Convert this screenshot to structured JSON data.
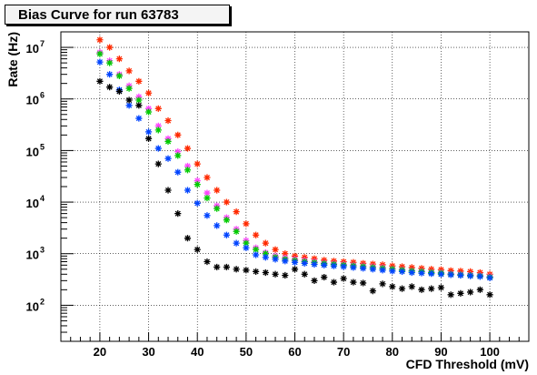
{
  "chart_data": {
    "type": "scatter",
    "title": "Bias Curve for run 63783",
    "xlabel": "CFD Threshold (mV)",
    "ylabel": "Rate (Hz)",
    "xlim": [
      12,
      108
    ],
    "ylim": [
      20,
      20000000
    ],
    "ylog": true,
    "grid": true,
    "x_ticks": [
      20,
      30,
      40,
      50,
      60,
      70,
      80,
      90,
      100
    ],
    "y_ticks": [
      {
        "value": 100,
        "base": "10",
        "exp": "2"
      },
      {
        "value": 1000,
        "base": "10",
        "exp": "3"
      },
      {
        "value": 10000,
        "base": "10",
        "exp": "4"
      },
      {
        "value": 100000,
        "base": "10",
        "exp": "5"
      },
      {
        "value": 1000000,
        "base": "10",
        "exp": "6"
      },
      {
        "value": 10000000,
        "base": "10",
        "exp": "7"
      }
    ],
    "x": [
      20,
      22,
      24,
      26,
      28,
      30,
      32,
      34,
      36,
      38,
      40,
      42,
      44,
      46,
      48,
      50,
      52,
      54,
      56,
      58,
      60,
      62,
      64,
      66,
      68,
      70,
      72,
      74,
      76,
      78,
      80,
      82,
      84,
      86,
      88,
      90,
      92,
      94,
      96,
      98,
      100
    ],
    "series": [
      {
        "color": "#ff2a00",
        "values": [
          14000000,
          10000000,
          6000000,
          3500000,
          2200000,
          1300000,
          650000,
          380000,
          200000,
          110000,
          55000,
          30000,
          17000,
          10000,
          6500,
          3800,
          2300,
          1600,
          1200,
          1000,
          900,
          850,
          800,
          750,
          720,
          700,
          680,
          650,
          630,
          610,
          580,
          560,
          540,
          520,
          500,
          490,
          470,
          460,
          450,
          430,
          400
        ]
      },
      {
        "color": "#ff44ff",
        "values": [
          8000000,
          5500000,
          3000000,
          1800000,
          1100000,
          650000,
          300000,
          170000,
          95000,
          50000,
          26000,
          15000,
          8500,
          5000,
          3000,
          1800,
          1300,
          1050,
          900,
          830,
          780,
          740,
          700,
          660,
          640,
          620,
          600,
          580,
          560,
          540,
          510,
          490,
          470,
          460,
          440,
          430,
          410,
          400,
          390,
          380,
          360
        ]
      },
      {
        "color": "#00cc00",
        "values": [
          7500000,
          5000000,
          2800000,
          1600000,
          950000,
          560000,
          250000,
          150000,
          80000,
          42000,
          22000,
          12000,
          7500,
          4500,
          2700,
          1600,
          1200,
          1000,
          850,
          780,
          740,
          700,
          670,
          640,
          620,
          600,
          580,
          560,
          540,
          520,
          500,
          480,
          460,
          450,
          430,
          420,
          400,
          390,
          380,
          370,
          350
        ]
      },
      {
        "color": "#0044ff",
        "values": [
          5200000,
          3000000,
          1500000,
          750000,
          420000,
          230000,
          110000,
          70000,
          38000,
          17000,
          9500,
          5500,
          3500,
          2300,
          1600,
          1300,
          950,
          850,
          780,
          720,
          680,
          650,
          620,
          600,
          580,
          560,
          540,
          520,
          500,
          480,
          460,
          450,
          430,
          420,
          410,
          400,
          390,
          380,
          370,
          360,
          340
        ]
      },
      {
        "color": "#000000",
        "values": [
          2200000,
          1700000,
          1400000,
          950000,
          750000,
          170000,
          55000,
          17000,
          6000,
          2000,
          1200,
          700,
          550,
          550,
          500,
          480,
          450,
          430,
          400,
          380,
          500,
          400,
          300,
          350,
          280,
          330,
          280,
          270,
          190,
          260,
          230,
          210,
          230,
          200,
          210,
          220,
          160,
          170,
          180,
          200,
          160
        ]
      }
    ]
  }
}
